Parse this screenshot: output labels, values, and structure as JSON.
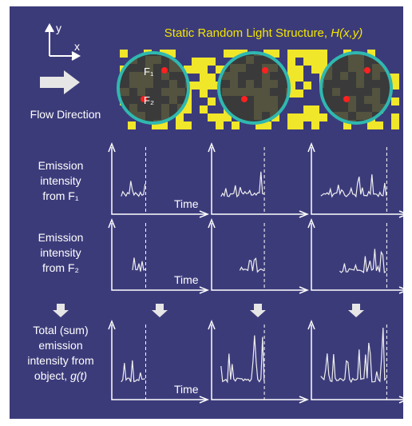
{
  "axes": {
    "y": "y",
    "x": "x"
  },
  "title": {
    "text": "Static Random Light Structure, ",
    "math": "H(x,y)"
  },
  "flow_label": "Flow Direction",
  "spots": {
    "f1": "F₁",
    "f2": "F₂"
  },
  "rows": [
    {
      "lines": [
        "Emission",
        "intensity",
        "from F₁"
      ],
      "x_label": "Time"
    },
    {
      "lines": [
        "Emission",
        "intensity",
        "from F₂"
      ],
      "x_label": "Time"
    },
    {
      "lines": [
        "Total (sum)",
        "emission",
        "intensity from"
      ],
      "tail": {
        "text": "object, ",
        "math": "g(t)"
      },
      "x_label": "Time"
    }
  ]
}
